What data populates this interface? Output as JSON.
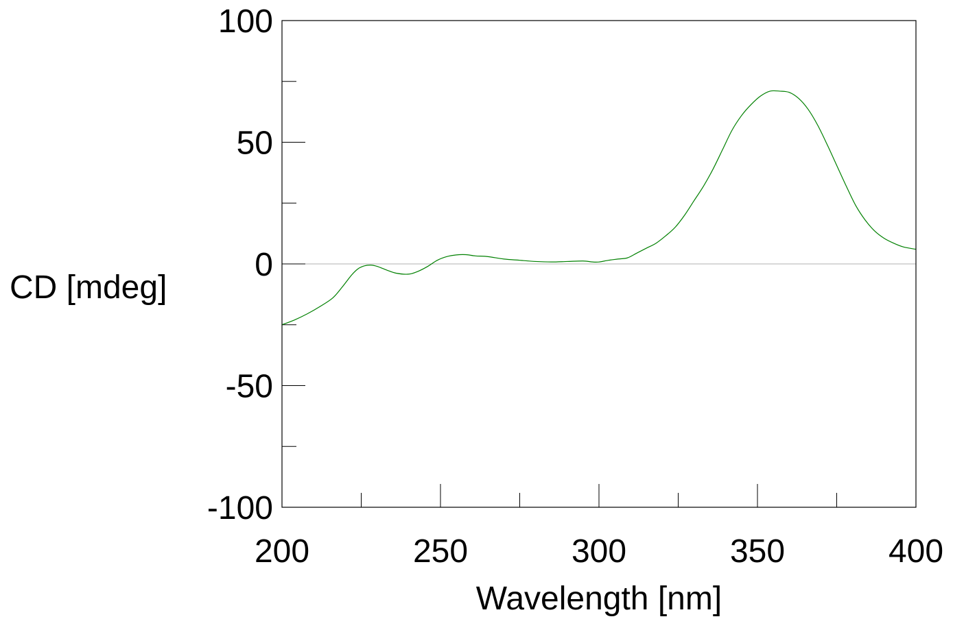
{
  "chart_data": {
    "type": "line",
    "title": "",
    "xlabel": "Wavelength [nm]",
    "ylabel": "CD [mdeg]",
    "xlim": [
      200,
      400
    ],
    "ylim": [
      -100,
      100
    ],
    "x_ticks": [
      200,
      250,
      300,
      350,
      400
    ],
    "x_tick_labels": [
      "200",
      "250",
      "300",
      "350",
      "400"
    ],
    "x_minor_ticks": [
      225,
      275,
      325,
      375
    ],
    "y_ticks": [
      -100,
      -50,
      0,
      50,
      100
    ],
    "y_tick_labels": [
      "-100",
      "-50",
      "0",
      "50",
      "100"
    ],
    "y_minor_ticks": [
      -75,
      -25,
      25,
      75
    ],
    "zero_line": true,
    "grid": false,
    "line_color": "#008000",
    "zero_line_color": "#b0b0b0",
    "series": [
      {
        "x": [
          200,
          204,
          208,
          212,
          216,
          219,
          222,
          224,
          226,
          228,
          230,
          233,
          236,
          240,
          243,
          246,
          249,
          252,
          255,
          258,
          261,
          265,
          270,
          275,
          280,
          285,
          290,
          295,
          298,
          300,
          303,
          306,
          309,
          312,
          315,
          318,
          321,
          324,
          327,
          330,
          333,
          336,
          339,
          342,
          345,
          348,
          351,
          354,
          357,
          360,
          363,
          366,
          369,
          372,
          375,
          378,
          381,
          384,
          387,
          390,
          393,
          396,
          400
        ],
        "y": [
          -25,
          -23,
          -20.5,
          -17.5,
          -14,
          -9.5,
          -4.5,
          -2,
          -0.8,
          -0.5,
          -1,
          -2.5,
          -3.8,
          -4.2,
          -3,
          -1,
          1.5,
          3,
          3.7,
          3.8,
          3.3,
          3,
          2,
          1.5,
          1,
          0.8,
          1,
          1.2,
          0.8,
          0.8,
          1.5,
          2,
          2.5,
          4.5,
          6.5,
          8.5,
          11.5,
          15,
          20,
          26,
          32,
          39,
          47,
          55,
          61,
          65.5,
          69,
          71,
          71,
          70.5,
          68,
          63.5,
          57,
          49,
          40.5,
          32,
          24,
          18,
          13.5,
          10.5,
          8.5,
          7,
          6
        ]
      }
    ]
  }
}
